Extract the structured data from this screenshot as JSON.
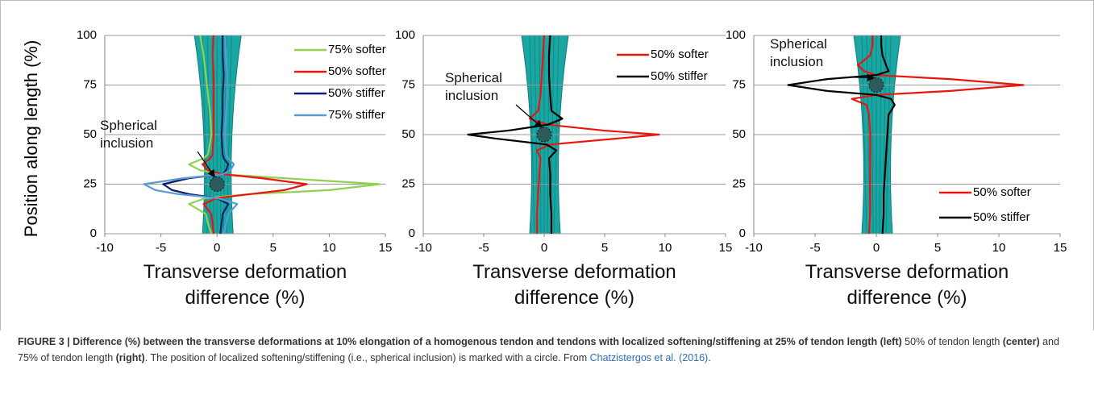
{
  "chart_data": [
    {
      "type": "line",
      "xlabel": "Transverse deformation difference (%)",
      "ylabel": "Position along length (%)",
      "xlim": [
        -10,
        15
      ],
      "xticks": [
        -10,
        -5,
        0,
        5,
        10,
        15
      ],
      "ylim": [
        0,
        100
      ],
      "yticks": [
        0,
        25,
        50,
        75,
        100
      ],
      "grid": true,
      "legend": "upper right",
      "annotation": "Spherical inclusion",
      "inclusion": {
        "x": 0,
        "y": 25
      },
      "y": [
        0,
        5,
        10,
        15,
        18,
        20,
        22,
        25,
        28,
        30,
        32,
        35,
        38,
        40,
        50,
        60,
        70,
        80,
        90,
        100
      ],
      "series": [
        {
          "name": "75% softer",
          "color": "#92d050",
          "values": [
            -0.5,
            -0.8,
            -1,
            -2.5,
            -1,
            3,
            10,
            14.5,
            6,
            0.5,
            -1.5,
            -2.5,
            -1.2,
            -0.8,
            -0.5,
            -0.6,
            -0.8,
            -1,
            -1.2,
            -1.5
          ]
        },
        {
          "name": "50% softer",
          "color": "#e8160e",
          "values": [
            -0.3,
            -0.4,
            -0.5,
            -1.2,
            0,
            3,
            6,
            8,
            4,
            0.5,
            -0.8,
            -1.3,
            -0.6,
            -0.4,
            -0.3,
            -0.3,
            -0.3,
            -0.3,
            -0.4,
            -0.3
          ]
        },
        {
          "name": "50% stiffer",
          "color": "#0a1f6b",
          "values": [
            0.3,
            0.4,
            0.5,
            1,
            0,
            -2.5,
            -4,
            -4.8,
            -2.5,
            0.5,
            0.8,
            1,
            0.6,
            0.5,
            0.4,
            0.5,
            0.5,
            0.6,
            0.5,
            0.5
          ]
        },
        {
          "name": "75% stiffer",
          "color": "#5b9bd5",
          "values": [
            0.6,
            0.8,
            1,
            1.8,
            0,
            -3.5,
            -5.5,
            -6.5,
            -3,
            0.5,
            1.2,
            1.5,
            1,
            0.8,
            0.7,
            0.8,
            0.9,
            0.9,
            0.8,
            0.7
          ]
        }
      ]
    },
    {
      "type": "line",
      "xlabel": "Transverse deformation difference (%)",
      "xlim": [
        -10,
        15
      ],
      "xticks": [
        -10,
        -5,
        0,
        5,
        10,
        15
      ],
      "ylim": [
        0,
        100
      ],
      "yticks": [
        0,
        25,
        50,
        75,
        100
      ],
      "grid": true,
      "legend": "upper right",
      "annotation": "Spherical inclusion",
      "inclusion": {
        "x": 0,
        "y": 50
      },
      "y": [
        0,
        10,
        20,
        30,
        38,
        42,
        45,
        48,
        50,
        52,
        55,
        58,
        62,
        70,
        80,
        90,
        100
      ],
      "series": [
        {
          "name": "50% softer",
          "color": "#e8160e",
          "values": [
            -0.6,
            -0.6,
            -0.5,
            -0.4,
            -0.3,
            -0.6,
            0.5,
            6,
            9.5,
            5,
            0.3,
            -1.2,
            -0.5,
            -0.3,
            -0.2,
            -0.1,
            0
          ]
        },
        {
          "name": "50% stiffer",
          "color": "#000000",
          "values": [
            0.6,
            0.6,
            0.5,
            0.5,
            0.4,
            1,
            0.2,
            -4,
            -6.3,
            -3,
            0.3,
            1.5,
            0.6,
            0.5,
            0.4,
            0.4,
            0.5
          ]
        }
      ]
    },
    {
      "type": "line",
      "xlabel": "Transverse deformation difference (%)",
      "xlim": [
        -10,
        15
      ],
      "xticks": [
        -10,
        -5,
        0,
        5,
        10,
        15
      ],
      "ylim": [
        0,
        100
      ],
      "yticks": [
        0,
        25,
        50,
        75,
        100
      ],
      "grid": true,
      "legend": "lower right",
      "annotation": "Spherical inclusion",
      "inclusion": {
        "x": 0,
        "y": 75
      },
      "y": [
        0,
        10,
        20,
        30,
        40,
        50,
        60,
        65,
        68,
        70,
        72,
        75,
        78,
        80,
        82,
        85,
        90,
        95,
        100
      ],
      "series": [
        {
          "name": "50% softer",
          "color": "#e8160e",
          "values": [
            -0.6,
            -0.5,
            -0.5,
            -0.5,
            -0.5,
            -0.5,
            -0.6,
            -0.8,
            -2,
            0,
            6,
            12,
            6,
            0,
            -1,
            -1.5,
            -0.5,
            -0.3,
            -0.3
          ]
        },
        {
          "name": "50% stiffer",
          "color": "#000000",
          "values": [
            0.5,
            0.6,
            0.6,
            0.7,
            0.8,
            0.9,
            1,
            1.5,
            1.2,
            0,
            -4,
            -7.2,
            -4,
            0,
            1,
            0.8,
            0.5,
            0.4,
            0.4
          ]
        }
      ]
    }
  ],
  "caption": {
    "segments": [
      {
        "text": "FIGURE 3 | Difference (%) between the transverse deformations at 10% elongation of a homogenous tendon and tendons with localized softening/stiffening at 25% of tendon length (left)",
        "style": "bold"
      },
      {
        "text": " 50% of tendon length ",
        "style": "normal"
      },
      {
        "text": "(center)",
        "style": "bold"
      },
      {
        "text": " and 75% of tendon length ",
        "style": "normal"
      },
      {
        "text": "(right)",
        "style": "bold"
      },
      {
        "text": ". The position of localized softening/stiffening (i.e., spherical inclusion) is marked with a circle. From ",
        "style": "normal"
      },
      {
        "text": "Chatzistergos et al. (2016)",
        "style": "link"
      },
      {
        "text": ".",
        "style": "normal"
      }
    ]
  }
}
